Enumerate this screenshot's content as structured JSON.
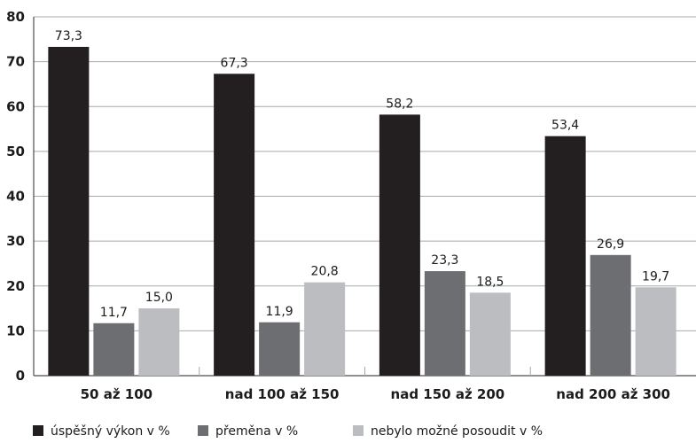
{
  "chart_data": {
    "type": "bar",
    "title": "",
    "xlabel": "",
    "ylabel": "",
    "categories": [
      "50 až 100",
      "nad 100 až 150",
      "nad 150 až 200",
      "nad 200 až 300"
    ],
    "series": [
      {
        "name": "úspěšný výkon v %",
        "color": "#231f20",
        "values": [
          73.3,
          67.3,
          58.2,
          53.4
        ],
        "labels": [
          "73,3",
          "67,3",
          "58,2",
          "53,4"
        ]
      },
      {
        "name": "přeměna v %",
        "color": "#6d6e71",
        "values": [
          11.7,
          11.9,
          23.3,
          26.9
        ],
        "labels": [
          "11,7",
          "11,9",
          "23,3",
          "26,9"
        ]
      },
      {
        "name": "nebylo možné posoudit v %",
        "color": "#bcbdc0",
        "values": [
          15.0,
          20.8,
          18.5,
          19.7
        ],
        "labels": [
          "15,0",
          "20,8",
          "18,5",
          "19,7"
        ]
      }
    ],
    "ylim": [
      0,
      80
    ],
    "yticks": [
      "0",
      "10",
      "20",
      "30",
      "40",
      "50",
      "60",
      "70",
      "80"
    ],
    "grid": true,
    "legend_position": "bottom-left"
  }
}
